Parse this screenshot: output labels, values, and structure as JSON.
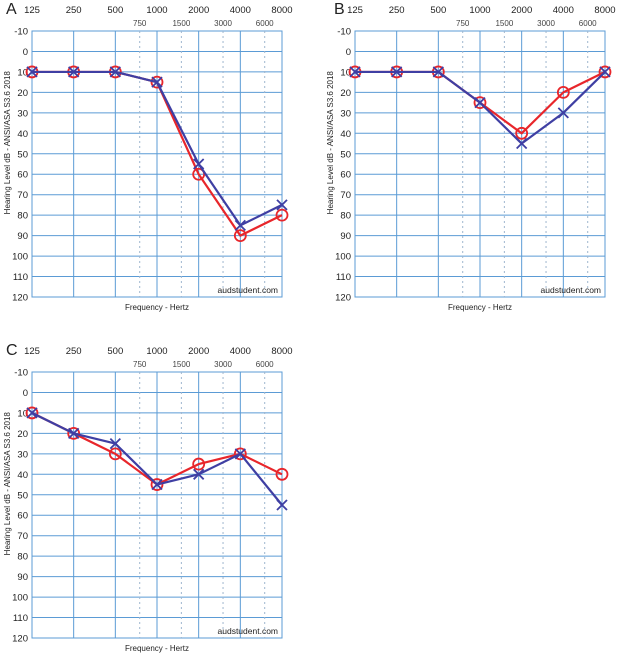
{
  "colors": {
    "grid": "#5b9bd5",
    "right_ear": "#e8262b",
    "left_ear": "#3f3fa3"
  },
  "chart_data": [
    {
      "type": "line",
      "panel": "A",
      "xlabel": "Frequency - Hertz",
      "ylabel": "Hearing Level dB - ANSI/ASA S3.6 2018",
      "watermark": "audstudent.com",
      "x_ticks": [
        "125",
        "250",
        "500",
        "1000",
        "2000",
        "4000",
        "8000"
      ],
      "x_mid_ticks": [
        "750",
        "1500",
        "3000",
        "6000"
      ],
      "y_ticks": [
        "-10",
        "0",
        "10",
        "20",
        "30",
        "40",
        "50",
        "60",
        "70",
        "80",
        "90",
        "100",
        "110",
        "120"
      ],
      "ylim": [
        -10,
        120
      ],
      "x_scale": "log2",
      "grid": true,
      "series": [
        {
          "marker": "circle",
          "color": "#e8262b",
          "x": [
            125,
            250,
            500,
            1000,
            2000,
            4000,
            8000
          ],
          "y": [
            10,
            10,
            10,
            15,
            60,
            90,
            80
          ]
        },
        {
          "marker": "cross",
          "color": "#3f3fa3",
          "x": [
            125,
            250,
            500,
            1000,
            2000,
            4000,
            8000
          ],
          "y": [
            10,
            10,
            10,
            15,
            55,
            85,
            75
          ]
        }
      ]
    },
    {
      "type": "line",
      "panel": "B",
      "xlabel": "Frequency - Hertz",
      "ylabel": "Hearing Level dB - ANSI/ASA S3.6 2018",
      "watermark": "audstudent.com",
      "x_ticks": [
        "125",
        "250",
        "500",
        "1000",
        "2000",
        "4000",
        "8000"
      ],
      "x_mid_ticks": [
        "750",
        "1500",
        "3000",
        "6000"
      ],
      "y_ticks": [
        "-10",
        "0",
        "10",
        "20",
        "30",
        "40",
        "50",
        "60",
        "70",
        "80",
        "90",
        "100",
        "110",
        "120"
      ],
      "ylim": [
        -10,
        120
      ],
      "x_scale": "log2",
      "grid": true,
      "series": [
        {
          "marker": "circle",
          "color": "#e8262b",
          "x": [
            125,
            250,
            500,
            1000,
            2000,
            4000,
            8000
          ],
          "y": [
            10,
            10,
            10,
            25,
            40,
            20,
            10
          ]
        },
        {
          "marker": "cross",
          "color": "#3f3fa3",
          "x": [
            125,
            250,
            500,
            1000,
            2000,
            4000,
            8000
          ],
          "y": [
            10,
            10,
            10,
            25,
            45,
            30,
            10
          ]
        }
      ]
    },
    {
      "type": "line",
      "panel": "C",
      "xlabel": "Frequency - Hertz",
      "ylabel": "Hearing Level dB - ANSI/ASA S3.6 2018",
      "watermark": "audstudent.com",
      "x_ticks": [
        "125",
        "250",
        "500",
        "1000",
        "2000",
        "4000",
        "8000"
      ],
      "x_mid_ticks": [
        "750",
        "1500",
        "3000",
        "6000"
      ],
      "y_ticks": [
        "-10",
        "0",
        "10",
        "20",
        "30",
        "40",
        "50",
        "60",
        "70",
        "80",
        "90",
        "100",
        "110",
        "120"
      ],
      "ylim": [
        -10,
        120
      ],
      "x_scale": "log2",
      "grid": true,
      "series": [
        {
          "marker": "circle",
          "color": "#e8262b",
          "x": [
            125,
            250,
            500,
            1000,
            2000,
            4000,
            8000
          ],
          "y": [
            10,
            20,
            30,
            45,
            35,
            30,
            40
          ]
        },
        {
          "marker": "cross",
          "color": "#3f3fa3",
          "x": [
            125,
            250,
            500,
            1000,
            2000,
            4000,
            8000
          ],
          "y": [
            10,
            20,
            25,
            45,
            40,
            30,
            55
          ]
        }
      ]
    }
  ]
}
